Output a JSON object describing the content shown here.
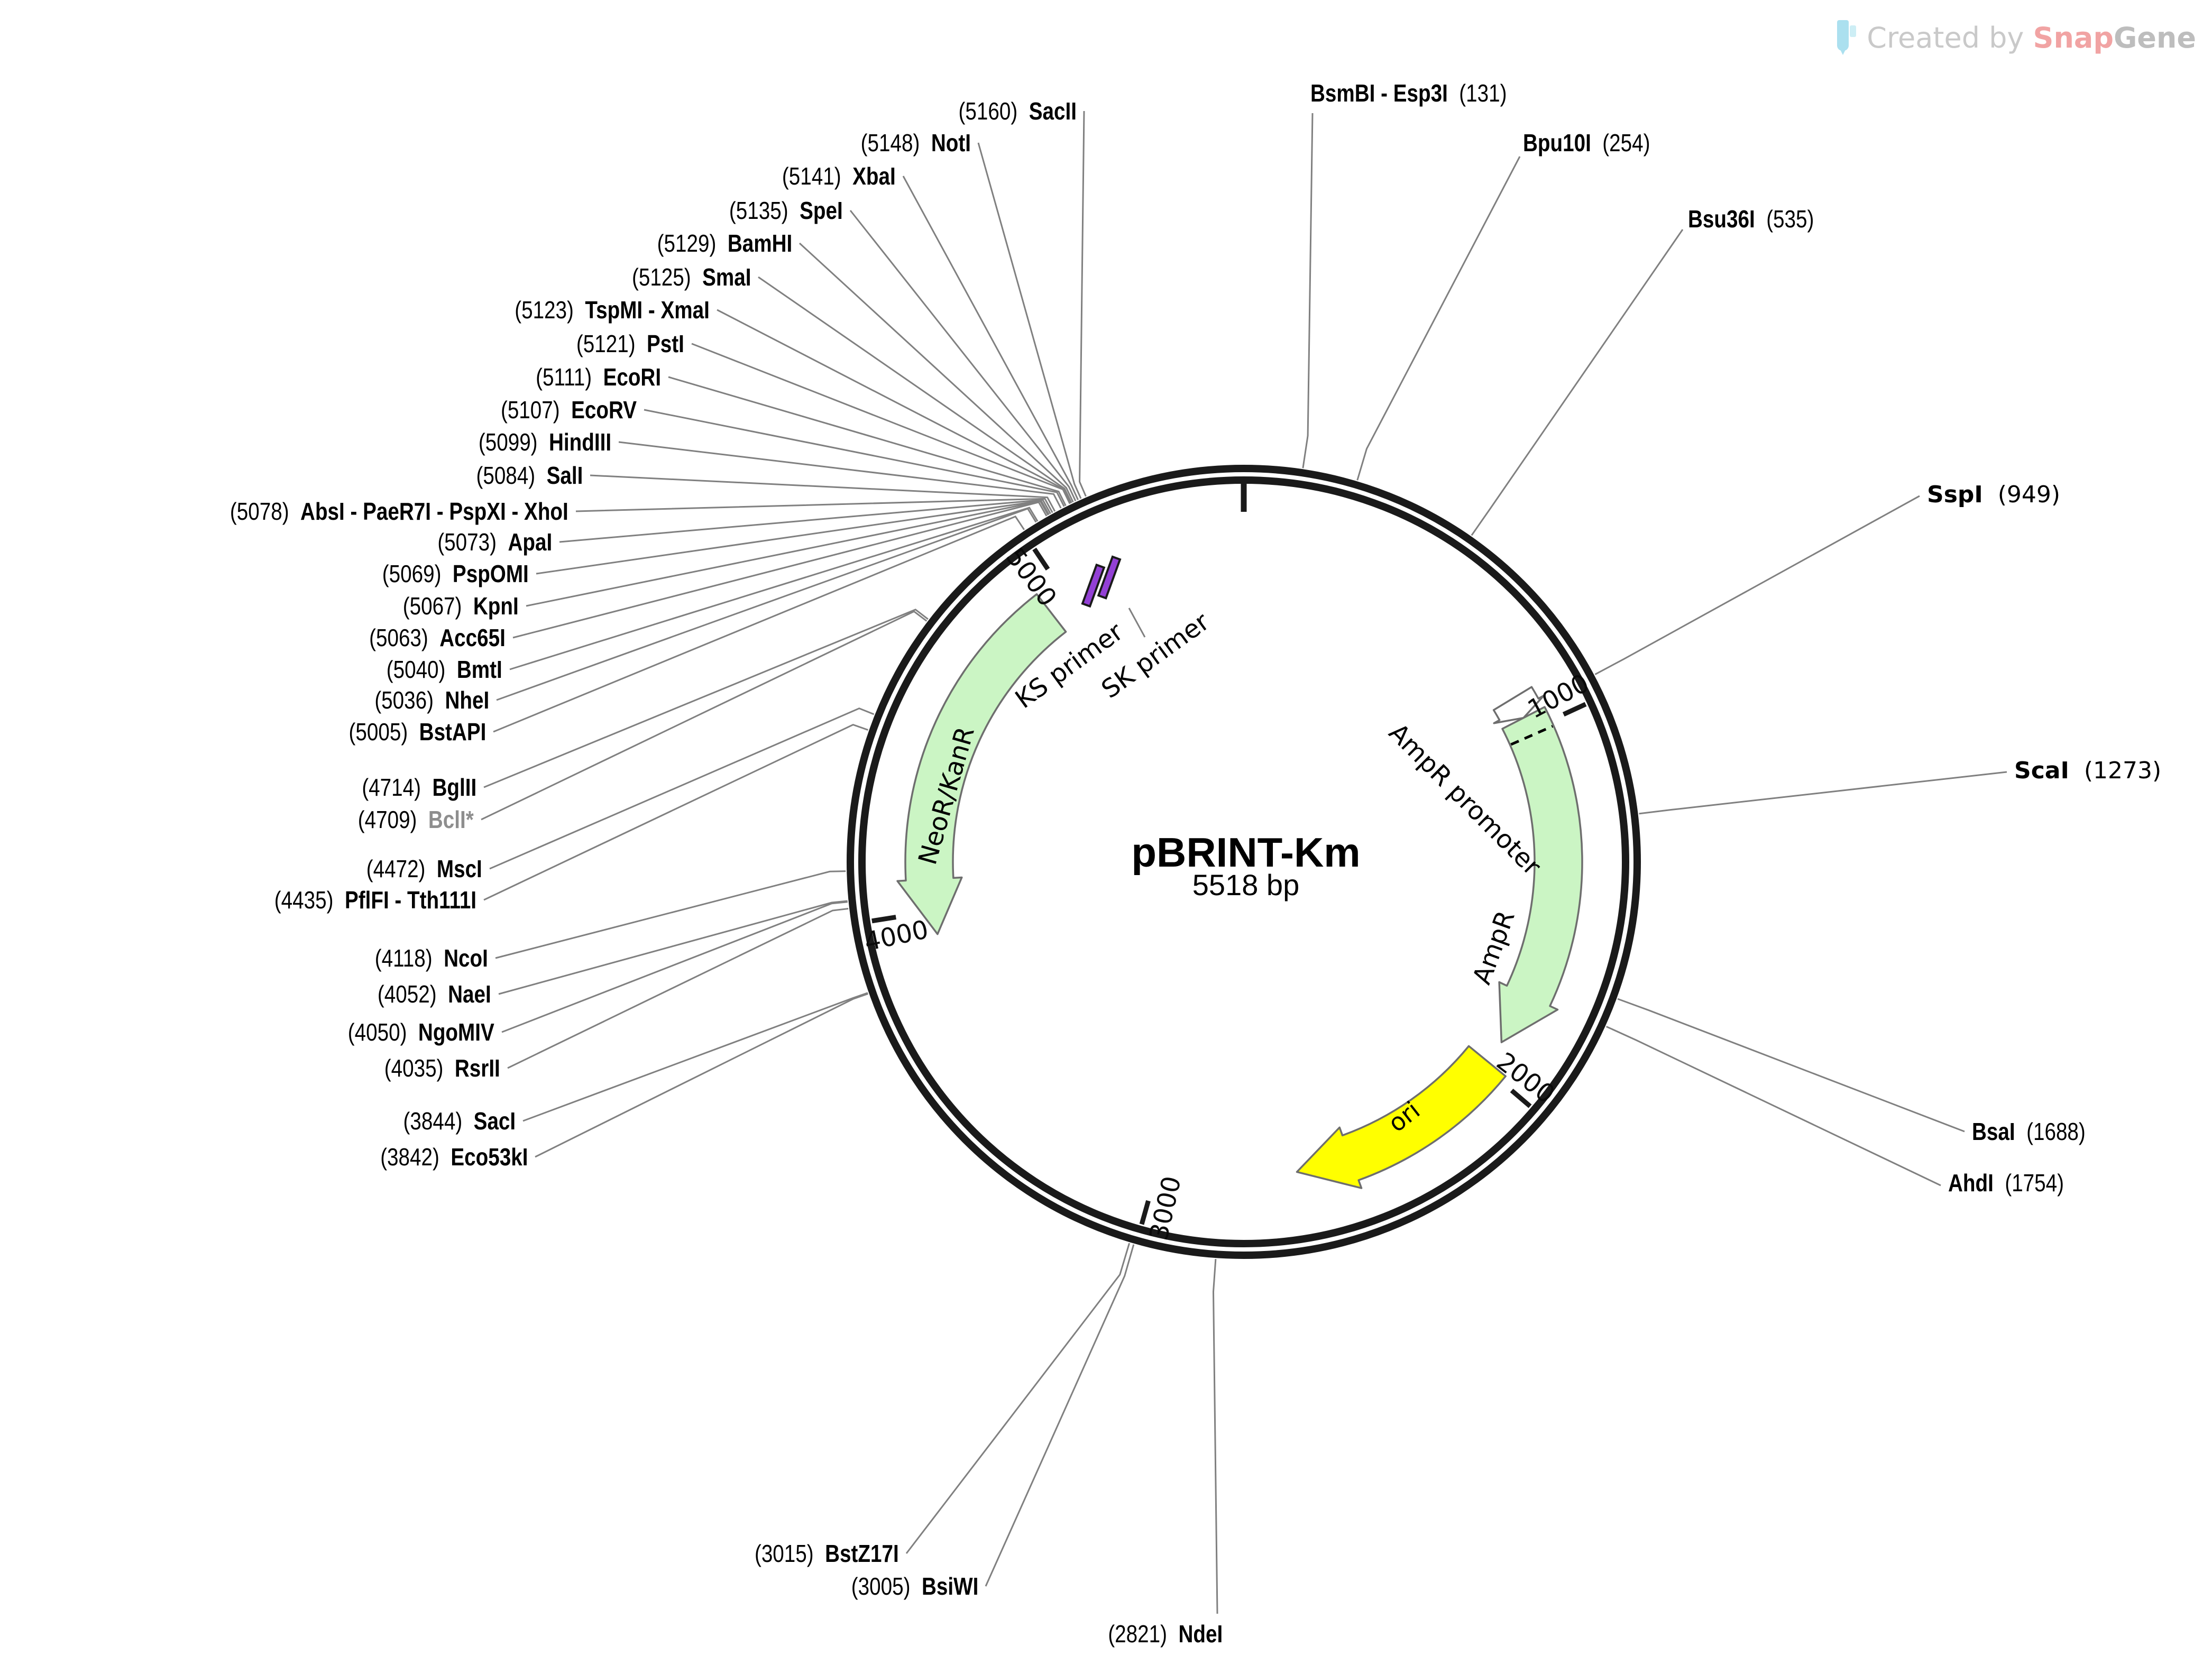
{
  "watermark": {
    "prefix": "Created by ",
    "brand_snap": "Snap",
    "brand_gene": "Gene"
  },
  "plasmid": {
    "name": "pBRINT-Km",
    "size_label": "5518 bp",
    "length_bp": 5518
  },
  "colors": {
    "ring": "#1a1a1a",
    "leader": "#808080",
    "feature_green": "#cbf5c4",
    "feature_yellow": "#ffff00",
    "feature_outline": "#6e6e6e",
    "primer_purple": "#9340d5",
    "muted_site": "#8e8e8e",
    "watermark_gray": "#c9c9c9",
    "watermark_pink": "#f1a3a3",
    "watermark_cyan": "#abe0ef"
  },
  "ticks": [
    {
      "bp": 1000,
      "label": "1000"
    },
    {
      "bp": 2000,
      "label": "2000"
    },
    {
      "bp": 3000,
      "label": "3000"
    },
    {
      "bp": 4000,
      "label": "4000"
    },
    {
      "bp": 5000,
      "label": "5000"
    }
  ],
  "features": [
    {
      "name": "NeoR/KanR",
      "type": "arc-arrow",
      "start": 4940,
      "end": 3935,
      "direction": "ccw",
      "fill": "#cbf5c4"
    },
    {
      "name": "AmpR promoter",
      "type": "block-arrow",
      "start": 900,
      "end": 962,
      "direction": "cw",
      "fill": "#ffffff"
    },
    {
      "name": "AmpR",
      "type": "arc-arrow",
      "start": 962,
      "end": 1916,
      "direction": "cw",
      "fill": "#cbf5c4",
      "divider_bp": 1016
    },
    {
      "name": "ori",
      "type": "arc-arrow",
      "start": 1982,
      "end": 2610,
      "direction": "cw",
      "fill": "#ffff00"
    }
  ],
  "primers": [
    {
      "name": "KS primer",
      "bp": 5080
    },
    {
      "name": "SK primer",
      "bp": 5130
    }
  ],
  "sites": [
    {
      "bp": 5160,
      "pos": "(5160)",
      "name": "SacII",
      "side": "left"
    },
    {
      "bp": 5148,
      "pos": "(5148)",
      "name": "NotI",
      "side": "left"
    },
    {
      "bp": 5141,
      "pos": "(5141)",
      "name": "XbaI",
      "side": "left"
    },
    {
      "bp": 5135,
      "pos": "(5135)",
      "name": "SpeI",
      "side": "left"
    },
    {
      "bp": 5129,
      "pos": "(5129)",
      "name": "BamHI",
      "side": "left"
    },
    {
      "bp": 5125,
      "pos": "(5125)",
      "name": "SmaI",
      "side": "left"
    },
    {
      "bp": 5123,
      "pos": "(5123)",
      "name": "TspMI - XmaI",
      "side": "left"
    },
    {
      "bp": 5121,
      "pos": "(5121)",
      "name": "PstI",
      "side": "left"
    },
    {
      "bp": 5111,
      "pos": "(5111)",
      "name": "EcoRI",
      "side": "left"
    },
    {
      "bp": 5107,
      "pos": "(5107)",
      "name": "EcoRV",
      "side": "left"
    },
    {
      "bp": 5099,
      "pos": "(5099)",
      "name": "HindIII",
      "side": "left"
    },
    {
      "bp": 5084,
      "pos": "(5084)",
      "name": "SalI",
      "side": "left"
    },
    {
      "bp": 5078,
      "pos": "(5078)",
      "name": "AbsI - PaeR7I - PspXI - XhoI",
      "side": "left"
    },
    {
      "bp": 5073,
      "pos": "(5073)",
      "name": "ApaI",
      "side": "left"
    },
    {
      "bp": 5069,
      "pos": "(5069)",
      "name": "PspOMI",
      "side": "left"
    },
    {
      "bp": 5067,
      "pos": "(5067)",
      "name": "KpnI",
      "side": "left"
    },
    {
      "bp": 5063,
      "pos": "(5063)",
      "name": "Acc65I",
      "side": "left"
    },
    {
      "bp": 5040,
      "pos": "(5040)",
      "name": "BmtI",
      "side": "left"
    },
    {
      "bp": 5036,
      "pos": "(5036)",
      "name": "NheI",
      "side": "left"
    },
    {
      "bp": 5005,
      "pos": "(5005)",
      "name": "BstAPI",
      "side": "left"
    },
    {
      "bp": 4714,
      "pos": "(4714)",
      "name": "BglII",
      "side": "left"
    },
    {
      "bp": 4709,
      "pos": "(4709)",
      "name": "BclI*",
      "side": "left",
      "muted": true
    },
    {
      "bp": 4472,
      "pos": "(4472)",
      "name": "MscI",
      "side": "left"
    },
    {
      "bp": 4435,
      "pos": "(4435)",
      "name": "PflFI - Tth111I",
      "side": "left"
    },
    {
      "bp": 4118,
      "pos": "(4118)",
      "name": "NcoI",
      "side": "left"
    },
    {
      "bp": 4052,
      "pos": "(4052)",
      "name": "NaeI",
      "side": "left"
    },
    {
      "bp": 4050,
      "pos": "(4050)",
      "name": "NgoMIV",
      "side": "left"
    },
    {
      "bp": 4035,
      "pos": "(4035)",
      "name": "RsrII",
      "side": "left"
    },
    {
      "bp": 3844,
      "pos": "(3844)",
      "name": "SacI",
      "side": "left"
    },
    {
      "bp": 3842,
      "pos": "(3842)",
      "name": "Eco53kI",
      "side": "left"
    },
    {
      "bp": 3015,
      "pos": "(3015)",
      "name": "BstZ17I",
      "side": "left"
    },
    {
      "bp": 3005,
      "pos": "(3005)",
      "name": "BsiWI",
      "side": "left"
    },
    {
      "bp": 2821,
      "pos": "(2821)",
      "name": "NdeI",
      "side": "left"
    },
    {
      "bp": 131,
      "pos": "(131)",
      "name": "BsmBI - Esp3I",
      "side": "right"
    },
    {
      "bp": 254,
      "pos": "(254)",
      "name": "Bpu10I",
      "side": "right"
    },
    {
      "bp": 535,
      "pos": "(535)",
      "name": "Bsu36I",
      "side": "right"
    },
    {
      "bp": 949,
      "pos": "(949)",
      "name": "SspI",
      "side": "right",
      "wide": true
    },
    {
      "bp": 1273,
      "pos": "(1273)",
      "name": "ScaI",
      "side": "right",
      "wide": true
    },
    {
      "bp": 1688,
      "pos": "(1688)",
      "name": "BsaI",
      "side": "right"
    },
    {
      "bp": 1754,
      "pos": "(1754)",
      "name": "AhdI",
      "side": "right"
    }
  ]
}
